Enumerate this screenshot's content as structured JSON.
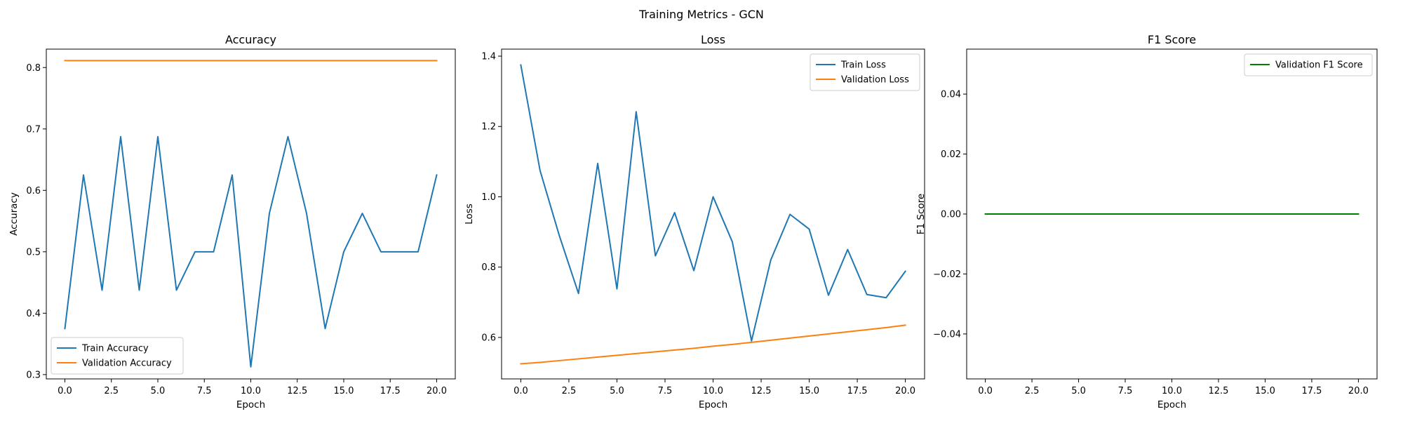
{
  "figure_title": "Training Metrics - GCN",
  "colors": {
    "blue": "#1f77b4",
    "orange": "#ff7f0e",
    "green": "#008000"
  },
  "chart_data": [
    {
      "type": "line",
      "title": "Accuracy",
      "xlabel": "Epoch",
      "ylabel": "Accuracy",
      "xlim": [
        -1,
        21
      ],
      "ylim": [
        0.293,
        0.83
      ],
      "xticks": [
        0,
        2.5,
        5,
        7.5,
        10,
        12.5,
        15,
        17.5,
        20
      ],
      "xtick_labels": [
        "0.0",
        "2.5",
        "5.0",
        "7.5",
        "10.0",
        "12.5",
        "15.0",
        "17.5",
        "20.0"
      ],
      "yticks": [
        0.3,
        0.4,
        0.5,
        0.6,
        0.7,
        0.8
      ],
      "ytick_labels": [
        "0.3",
        "0.4",
        "0.5",
        "0.6",
        "0.7",
        "0.8"
      ],
      "legend_position": "lower-left",
      "series": [
        {
          "name": "Train Accuracy",
          "color": "#1f77b4",
          "x": [
            0,
            1,
            2,
            3,
            4,
            5,
            6,
            7,
            8,
            9,
            10,
            11,
            12,
            13,
            14,
            15,
            16,
            17,
            18,
            19,
            20
          ],
          "y": [
            0.375,
            0.625,
            0.4375,
            0.6875,
            0.4375,
            0.6875,
            0.4375,
            0.5,
            0.5,
            0.625,
            0.3125,
            0.5625,
            0.6875,
            0.5625,
            0.375,
            0.5,
            0.5625,
            0.5,
            0.5,
            0.5,
            0.625
          ]
        },
        {
          "name": "Validation Accuracy",
          "color": "#ff7f0e",
          "x": [
            0,
            1,
            2,
            3,
            4,
            5,
            6,
            7,
            8,
            9,
            10,
            11,
            12,
            13,
            14,
            15,
            16,
            17,
            18,
            19,
            20
          ],
          "y": [
            0.8113,
            0.8113,
            0.8113,
            0.8113,
            0.8113,
            0.8113,
            0.8113,
            0.8113,
            0.8113,
            0.8113,
            0.8113,
            0.8113,
            0.8113,
            0.8113,
            0.8113,
            0.8113,
            0.8113,
            0.8113,
            0.8113,
            0.8113,
            0.8113
          ]
        }
      ]
    },
    {
      "type": "line",
      "title": "Loss",
      "xlabel": "Epoch",
      "ylabel": "Loss",
      "xlim": [
        -1,
        21
      ],
      "ylim": [
        0.482,
        1.42
      ],
      "xticks": [
        0,
        2.5,
        5,
        7.5,
        10,
        12.5,
        15,
        17.5,
        20
      ],
      "xtick_labels": [
        "0.0",
        "2.5",
        "5.0",
        "7.5",
        "10.0",
        "12.5",
        "15.0",
        "17.5",
        "20.0"
      ],
      "yticks": [
        0.6,
        0.8,
        1.0,
        1.2,
        1.4
      ],
      "ytick_labels": [
        "0.6",
        "0.8",
        "1.0",
        "1.2",
        "1.4"
      ],
      "legend_position": "upper-right",
      "series": [
        {
          "name": "Train Loss",
          "color": "#1f77b4",
          "x": [
            0,
            1,
            2,
            3,
            4,
            5,
            6,
            7,
            8,
            9,
            10,
            11,
            12,
            13,
            14,
            15,
            16,
            17,
            18,
            19,
            20
          ],
          "y": [
            1.375,
            1.075,
            0.89,
            0.725,
            1.095,
            0.738,
            1.242,
            0.832,
            0.955,
            0.79,
            1.0,
            0.872,
            0.59,
            0.82,
            0.95,
            0.908,
            0.72,
            0.85,
            0.722,
            0.713,
            0.788
          ]
        },
        {
          "name": "Validation Loss",
          "color": "#ff7f0e",
          "x": [
            0,
            1,
            2,
            3,
            4,
            5,
            6,
            7,
            8,
            9,
            10,
            11,
            12,
            13,
            14,
            15,
            16,
            17,
            18,
            19,
            20
          ],
          "y": [
            0.525,
            0.529,
            0.534,
            0.539,
            0.544,
            0.549,
            0.554,
            0.559,
            0.564,
            0.569,
            0.575,
            0.58,
            0.586,
            0.592,
            0.598,
            0.604,
            0.61,
            0.616,
            0.622,
            0.628,
            0.635
          ]
        }
      ]
    },
    {
      "type": "line",
      "title": "F1 Score",
      "xlabel": "Epoch",
      "ylabel": "F1 Score",
      "xlim": [
        -1,
        21
      ],
      "ylim": [
        -0.055,
        0.055
      ],
      "xticks": [
        0,
        2.5,
        5,
        7.5,
        10,
        12.5,
        15,
        17.5,
        20
      ],
      "xtick_labels": [
        "0.0",
        "2.5",
        "5.0",
        "7.5",
        "10.0",
        "12.5",
        "15.0",
        "17.5",
        "20.0"
      ],
      "yticks": [
        -0.04,
        -0.02,
        0.0,
        0.02,
        0.04
      ],
      "ytick_labels": [
        "−0.04",
        "−0.02",
        "0.00",
        "0.02",
        "0.04"
      ],
      "legend_position": "upper-right",
      "series": [
        {
          "name": "Validation F1 Score",
          "color": "#008000",
          "x": [
            0,
            1,
            2,
            3,
            4,
            5,
            6,
            7,
            8,
            9,
            10,
            11,
            12,
            13,
            14,
            15,
            16,
            17,
            18,
            19,
            20
          ],
          "y": [
            0,
            0,
            0,
            0,
            0,
            0,
            0,
            0,
            0,
            0,
            0,
            0,
            0,
            0,
            0,
            0,
            0,
            0,
            0,
            0,
            0
          ]
        }
      ]
    }
  ]
}
